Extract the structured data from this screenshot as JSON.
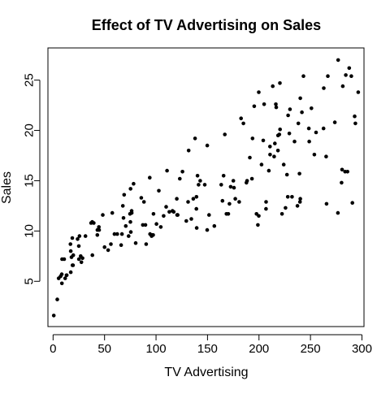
{
  "chart_data": {
    "type": "scatter",
    "title": "Effect of TV Advertising on Sales",
    "xlabel": "TV Advertising",
    "ylabel": "Sales",
    "xlim": [
      -5,
      302
    ],
    "ylim": [
      0.5,
      28.2
    ],
    "xticks": [
      0,
      50,
      100,
      150,
      200,
      250,
      300
    ],
    "yticks": [
      5,
      10,
      15,
      20,
      25
    ],
    "xtick_labels": [
      "0",
      "50",
      "100",
      "150",
      "200",
      "250",
      "300"
    ],
    "ytick_labels": [
      "5",
      "10",
      "15",
      "20",
      "25"
    ],
    "grid": false,
    "legend": null,
    "point_color": "#000000",
    "points": [
      [
        0.7,
        1.6
      ],
      [
        4.1,
        3.2
      ],
      [
        5.4,
        5.3
      ],
      [
        7.3,
        5.5
      ],
      [
        8.4,
        5.7
      ],
      [
        8.6,
        4.8
      ],
      [
        8.7,
        7.2
      ],
      [
        10.8,
        7.2
      ],
      [
        11.7,
        5.3
      ],
      [
        13.1,
        5.6
      ],
      [
        13.2,
        5.6
      ],
      [
        16.9,
        8.7
      ],
      [
        17.2,
        5.9
      ],
      [
        17.2,
        8.0
      ],
      [
        17.9,
        7.4
      ],
      [
        18.7,
        9.3
      ],
      [
        18.8,
        6.6
      ],
      [
        19.4,
        6.6
      ],
      [
        19.6,
        7.6
      ],
      [
        23.8,
        9.2
      ],
      [
        25.0,
        8.5
      ],
      [
        25.1,
        7.2
      ],
      [
        25.6,
        9.5
      ],
      [
        26.8,
        7.5
      ],
      [
        27.5,
        6.9
      ],
      [
        28.6,
        7.3
      ],
      [
        31.5,
        9.5
      ],
      [
        36.9,
        10.8
      ],
      [
        38.0,
        10.9
      ],
      [
        38.2,
        7.6
      ],
      [
        39.5,
        10.8
      ],
      [
        43.0,
        9.6
      ],
      [
        43.1,
        10.1
      ],
      [
        44.5,
        10.4
      ],
      [
        44.7,
        10.1
      ],
      [
        48.3,
        11.6
      ],
      [
        50.0,
        8.4
      ],
      [
        53.5,
        8.1
      ],
      [
        56.2,
        8.7
      ],
      [
        57.5,
        11.8
      ],
      [
        59.6,
        9.7
      ],
      [
        62.3,
        9.7
      ],
      [
        66.1,
        8.6
      ],
      [
        66.9,
        9.7
      ],
      [
        67.8,
        12.5
      ],
      [
        68.4,
        11.3
      ],
      [
        69.0,
        13.6
      ],
      [
        70.6,
        10.5
      ],
      [
        73.4,
        9.5
      ],
      [
        74.7,
        11.7
      ],
      [
        75.1,
        10.9
      ],
      [
        75.3,
        14.2
      ],
      [
        75.5,
        9.9
      ],
      [
        76.3,
        12.0
      ],
      [
        76.4,
        11.8
      ],
      [
        78.2,
        14.7
      ],
      [
        80.2,
        8.8
      ],
      [
        85.7,
        13.3
      ],
      [
        87.2,
        10.6
      ],
      [
        88.3,
        12.9
      ],
      [
        89.7,
        10.6
      ],
      [
        90.4,
        8.7
      ],
      [
        93.9,
        15.3
      ],
      [
        94.2,
        9.7
      ],
      [
        95.7,
        9.5
      ],
      [
        96.2,
        9.6
      ],
      [
        97.2,
        9.6
      ],
      [
        97.5,
        11.7
      ],
      [
        100.4,
        10.7
      ],
      [
        102.7,
        14.0
      ],
      [
        104.6,
        10.4
      ],
      [
        107.4,
        11.5
      ],
      [
        109.8,
        12.4
      ],
      [
        110.7,
        16.0
      ],
      [
        112.9,
        11.9
      ],
      [
        116.0,
        12.0
      ],
      [
        117.2,
        11.9
      ],
      [
        120.2,
        13.2
      ],
      [
        120.5,
        11.6
      ],
      [
        121.0,
        11.6
      ],
      [
        123.1,
        15.2
      ],
      [
        125.7,
        15.9
      ],
      [
        129.4,
        11.0
      ],
      [
        131.1,
        12.9
      ],
      [
        131.7,
        18.0
      ],
      [
        134.3,
        11.2
      ],
      [
        136.2,
        13.2
      ],
      [
        137.9,
        19.2
      ],
      [
        139.2,
        12.2
      ],
      [
        139.5,
        10.3
      ],
      [
        139.3,
        13.4
      ],
      [
        140.3,
        15.5
      ],
      [
        141.3,
        14.6
      ],
      [
        142.9,
        15.0
      ],
      [
        147.3,
        14.6
      ],
      [
        149.7,
        10.1
      ],
      [
        149.8,
        18.5
      ],
      [
        151.5,
        11.6
      ],
      [
        156.6,
        10.5
      ],
      [
        163.3,
        14.6
      ],
      [
        164.5,
        13.0
      ],
      [
        165.6,
        15.5
      ],
      [
        166.8,
        19.6
      ],
      [
        168.4,
        11.7
      ],
      [
        170.2,
        11.7
      ],
      [
        171.3,
        12.7
      ],
      [
        172.5,
        14.4
      ],
      [
        175.1,
        15.0
      ],
      [
        175.7,
        14.3
      ],
      [
        177.0,
        13.2
      ],
      [
        180.8,
        12.9
      ],
      [
        182.6,
        21.2
      ],
      [
        184.9,
        20.7
      ],
      [
        187.8,
        14.8
      ],
      [
        188.4,
        15.0
      ],
      [
        191.1,
        17.3
      ],
      [
        193.2,
        15.2
      ],
      [
        193.7,
        19.2
      ],
      [
        195.4,
        22.4
      ],
      [
        197.6,
        11.7
      ],
      [
        198.9,
        10.6
      ],
      [
        199.8,
        23.8
      ],
      [
        199.8,
        11.5
      ],
      [
        202.5,
        16.6
      ],
      [
        204.1,
        19.0
      ],
      [
        205.0,
        22.6
      ],
      [
        206.8,
        12.2
      ],
      [
        206.9,
        12.9
      ],
      [
        209.6,
        16.0
      ],
      [
        210.7,
        18.4
      ],
      [
        210.8,
        17.6
      ],
      [
        213.4,
        24.4
      ],
      [
        214.7,
        17.4
      ],
      [
        215.4,
        18.7
      ],
      [
        216.4,
        22.6
      ],
      [
        216.8,
        22.3
      ],
      [
        218.4,
        18.0
      ],
      [
        218.5,
        19.5
      ],
      [
        219.8,
        19.6
      ],
      [
        220.3,
        24.7
      ],
      [
        220.5,
        20.1
      ],
      [
        222.4,
        11.7
      ],
      [
        224.0,
        16.6
      ],
      [
        225.8,
        12.3
      ],
      [
        227.2,
        15.6
      ],
      [
        228.0,
        13.4
      ],
      [
        228.3,
        21.5
      ],
      [
        229.5,
        19.7
      ],
      [
        230.1,
        22.1
      ],
      [
        232.1,
        13.4
      ],
      [
        234.5,
        18.9
      ],
      [
        237.4,
        12.5
      ],
      [
        238.2,
        20.7
      ],
      [
        239.3,
        15.7
      ],
      [
        239.8,
        12.9
      ],
      [
        240.1,
        23.2
      ],
      [
        240.1,
        13.2
      ],
      [
        241.7,
        21.8
      ],
      [
        243.2,
        25.4
      ],
      [
        248.4,
        20.2
      ],
      [
        248.8,
        18.9
      ],
      [
        250.9,
        22.2
      ],
      [
        253.8,
        17.6
      ],
      [
        255.4,
        19.8
      ],
      [
        262.7,
        20.2
      ],
      [
        262.9,
        24.2
      ],
      [
        265.2,
        17.4
      ],
      [
        265.6,
        12.7
      ],
      [
        266.9,
        25.4
      ],
      [
        273.7,
        20.8
      ],
      [
        276.7,
        11.8
      ],
      [
        276.9,
        27.0
      ],
      [
        280.2,
        14.8
      ],
      [
        281.4,
        24.4
      ],
      [
        283.6,
        15.9
      ],
      [
        284.3,
        25.5
      ],
      [
        286.0,
        15.9
      ],
      [
        287.6,
        26.2
      ],
      [
        289.7,
        25.4
      ],
      [
        290.7,
        12.8
      ],
      [
        292.9,
        21.4
      ],
      [
        293.6,
        20.7
      ],
      [
        296.4,
        23.8
      ],
      [
        280.7,
        16.1
      ]
    ]
  }
}
